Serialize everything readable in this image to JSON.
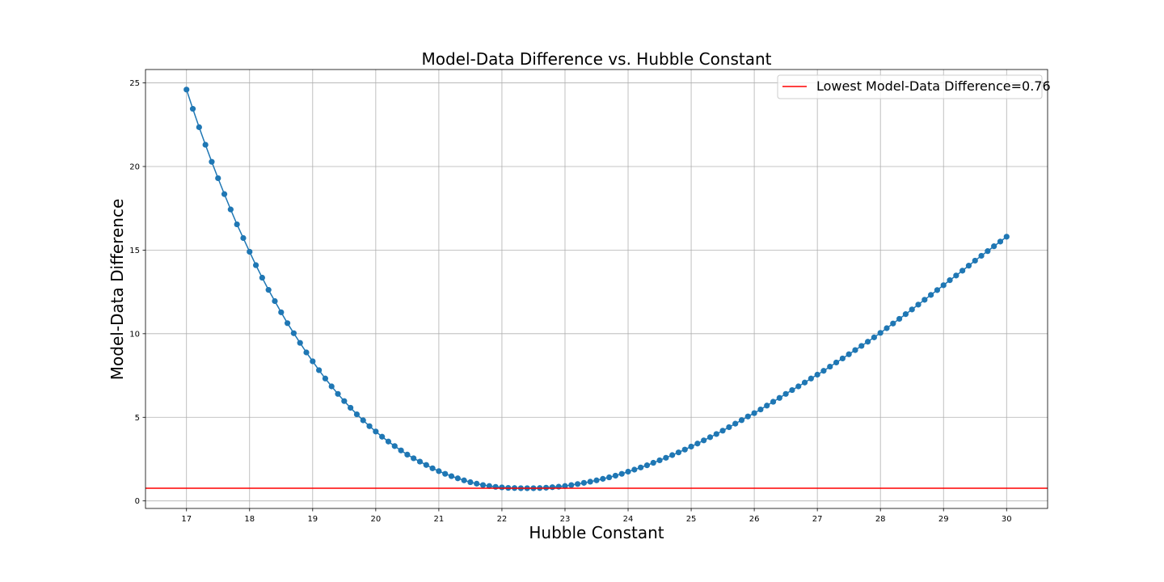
{
  "chart_data": {
    "type": "line",
    "title": "Model-Data Difference vs. Hubble Constant",
    "xlabel": "Hubble Constant",
    "ylabel": "Model-Data Difference",
    "xlim": [
      16.35,
      30.65
    ],
    "ylim": [
      -0.45,
      25.8
    ],
    "xticks": [
      17,
      18,
      19,
      20,
      21,
      22,
      23,
      24,
      25,
      26,
      27,
      28,
      29,
      30
    ],
    "yticks": [
      0,
      5,
      10,
      15,
      20,
      25
    ],
    "grid": true,
    "legend_position": "top-right",
    "series_color": "#1f77b4",
    "line_color": "#ff0000",
    "x": [
      17.0,
      17.1,
      17.2,
      17.3,
      17.4,
      17.5,
      17.6,
      17.7,
      17.8,
      17.9,
      18.0,
      18.1,
      18.2,
      18.3,
      18.4,
      18.5,
      18.6,
      18.7,
      18.8,
      18.9,
      19.0,
      19.1,
      19.2,
      19.3,
      19.4,
      19.5,
      19.6,
      19.7,
      19.8,
      19.9,
      20.0,
      20.1,
      20.2,
      20.3,
      20.4,
      20.5,
      20.6,
      20.7,
      20.8,
      20.9,
      21.0,
      21.1,
      21.2,
      21.3,
      21.4,
      21.5,
      21.6,
      21.7,
      21.8,
      21.9,
      22.0,
      22.1,
      22.2,
      22.3,
      22.4,
      22.5,
      22.6,
      22.7,
      22.8,
      22.9,
      23.0,
      23.1,
      23.2,
      23.3,
      23.4,
      23.5,
      23.6,
      23.7,
      23.8,
      23.9,
      24.0,
      24.1,
      24.2,
      24.3,
      24.4,
      24.5,
      24.6,
      24.7,
      24.8,
      24.9,
      25.0,
      25.1,
      25.2,
      25.3,
      25.4,
      25.5,
      25.6,
      25.7,
      25.8,
      25.9,
      26.0,
      26.1,
      26.2,
      26.3,
      26.4,
      26.5,
      26.6,
      26.7,
      26.8,
      26.9,
      27.0,
      27.1,
      27.2,
      27.3,
      27.4,
      27.5,
      27.6,
      27.7,
      27.8,
      27.9,
      28.0,
      28.1,
      28.2,
      28.3,
      28.4,
      28.5,
      28.6,
      28.7,
      28.8,
      28.9,
      29.0,
      29.1,
      29.2,
      29.3,
      29.4,
      29.5,
      29.6,
      29.7,
      29.8,
      29.9,
      30.0
    ],
    "series": [
      {
        "values": [
          24.6,
          23.45,
          22.35,
          21.3,
          20.28,
          19.3,
          18.35,
          17.43,
          16.54,
          15.72,
          14.9,
          14.1,
          13.35,
          12.62,
          11.95,
          11.28,
          10.63,
          10.03,
          9.45,
          8.88,
          8.35,
          7.82,
          7.32,
          6.85,
          6.4,
          5.97,
          5.57,
          5.18,
          4.82,
          4.47,
          4.15,
          3.84,
          3.55,
          3.28,
          3.02,
          2.77,
          2.55,
          2.35,
          2.15,
          1.95,
          1.78,
          1.62,
          1.48,
          1.35,
          1.23,
          1.12,
          1.03,
          0.95,
          0.89,
          0.84,
          0.81,
          0.78,
          0.77,
          0.76,
          0.76,
          0.76,
          0.77,
          0.79,
          0.82,
          0.85,
          0.89,
          0.95,
          1.01,
          1.08,
          1.15,
          1.23,
          1.32,
          1.41,
          1.51,
          1.62,
          1.75,
          1.87,
          2.0,
          2.13,
          2.28,
          2.43,
          2.58,
          2.74,
          2.9,
          3.07,
          3.25,
          3.43,
          3.62,
          3.81,
          4.0,
          4.2,
          4.41,
          4.62,
          4.83,
          5.05,
          5.25,
          5.47,
          5.7,
          5.93,
          6.16,
          6.4,
          6.63,
          6.85,
          7.08,
          7.32,
          7.55,
          7.78,
          8.03,
          8.28,
          8.52,
          8.77,
          9.02,
          9.27,
          9.52,
          9.78,
          10.05,
          10.33,
          10.61,
          10.89,
          11.17,
          11.45,
          11.74,
          12.03,
          12.32,
          12.61,
          12.9,
          13.2,
          13.48,
          13.77,
          14.07,
          14.37,
          14.66,
          14.94,
          15.23,
          15.51,
          15.8
        ]
      }
    ],
    "hline": {
      "y": 0.76,
      "label": "Lowest Model-Data Difference=0.76"
    }
  }
}
